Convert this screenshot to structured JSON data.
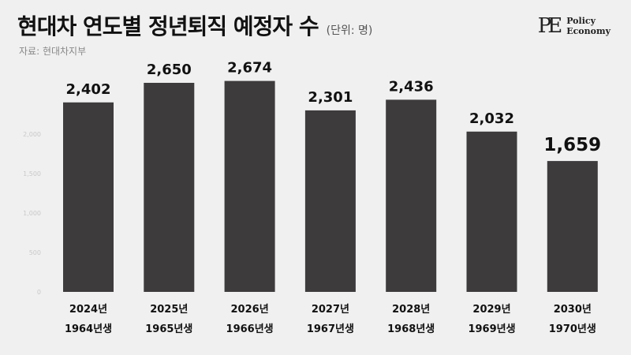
{
  "header": {
    "title": "현대차 연도별 정년퇴직 예정자 수",
    "unit": "(단위: 명)",
    "source": "자료: 현대차지부"
  },
  "logo": {
    "mark": "PE",
    "line1": "Policy",
    "line2": "Economy"
  },
  "chart_data": {
    "type": "bar",
    "categories": [
      "2024년",
      "2025년",
      "2026년",
      "2027년",
      "2028년",
      "2029년",
      "2030년"
    ],
    "subcategories": [
      "1964년생",
      "1965년생",
      "1966년생",
      "1967년생",
      "1968년생",
      "1969년생",
      "1970년생"
    ],
    "values": [
      2402,
      2650,
      2674,
      2301,
      2436,
      2032,
      1659
    ],
    "value_labels": [
      "2,402",
      "2,650",
      "2,674",
      "2,301",
      "2,436",
      "2,032",
      "1,659"
    ],
    "highlight_index": 6,
    "ylim": [
      0,
      2500
    ],
    "yticks": [
      0,
      500,
      1000,
      1500,
      2000
    ],
    "ytick_labels": [
      "0",
      "500",
      "1,000",
      "1,500",
      "2,000"
    ],
    "grid": false,
    "bar_color": "#3d3b3c",
    "background": "#f0f0f0"
  }
}
